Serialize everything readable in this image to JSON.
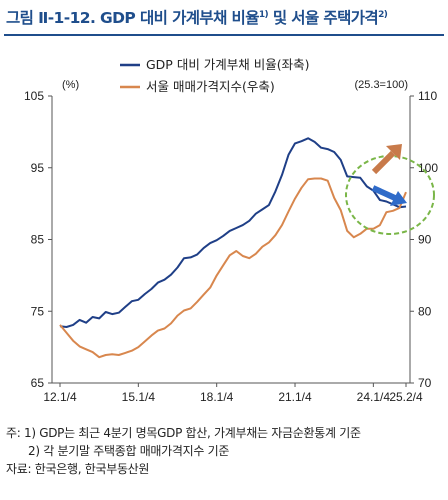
{
  "title": {
    "main": "그림 Ⅱ-1-12. GDP 대비 가계부채 비율",
    "note1": "1)",
    "mid": " 및 서울 주택가격",
    "note2": "2)"
  },
  "notes": [
    "주: 1) GDP는 최근 4분기 명목GDP 합산, 가계부채는 자금순환통계 기준",
    "2) 각 분기말 주택종합 매매가격지수 기준",
    "자료: 한국은행, 한국부동산원"
  ],
  "colors": {
    "title": "#1f4e8c",
    "debt_ratio": "#1f3f87",
    "house_price": "#d8874e",
    "up_arrow": "#c87a4a",
    "down_arrow": "#2f6bc9",
    "ellipse": "#7ab648"
  },
  "chart_data": {
    "type": "line",
    "left_unit": "(%)",
    "right_unit": "(25.3=100)",
    "x_tick_labels": [
      "12.1/4",
      "15.1/4",
      "18.1/4",
      "21.1/4",
      "24.1/4",
      "25.2/4"
    ],
    "x_tick_positions": [
      "2012Q1",
      "2015Q1",
      "2018Q1",
      "2021Q1",
      "2024Q1",
      "2025Q2"
    ],
    "left_axis": {
      "min": 65,
      "max": 105,
      "ticks": [
        65,
        75,
        85,
        95,
        105
      ]
    },
    "right_axis": {
      "min": 70,
      "max": 110,
      "ticks": [
        70,
        80,
        90,
        100,
        110
      ]
    },
    "series": [
      {
        "name": "GDP 대비 가계부채 비율(좌축)",
        "axis": "left",
        "color": "#1f3f87",
        "x": [
          "2012Q1",
          "2012Q2",
          "2012Q3",
          "2012Q4",
          "2013Q1",
          "2013Q2",
          "2013Q3",
          "2013Q4",
          "2014Q1",
          "2014Q2",
          "2014Q3",
          "2014Q4",
          "2015Q1",
          "2015Q2",
          "2015Q3",
          "2015Q4",
          "2016Q1",
          "2016Q2",
          "2016Q3",
          "2016Q4",
          "2017Q1",
          "2017Q2",
          "2017Q3",
          "2017Q4",
          "2018Q1",
          "2018Q2",
          "2018Q3",
          "2018Q4",
          "2019Q1",
          "2019Q2",
          "2019Q3",
          "2019Q4",
          "2020Q1",
          "2020Q2",
          "2020Q3",
          "2020Q4",
          "2021Q1",
          "2021Q2",
          "2021Q3",
          "2021Q4",
          "2022Q1",
          "2022Q2",
          "2022Q3",
          "2022Q4",
          "2023Q1",
          "2023Q2",
          "2023Q3",
          "2023Q4",
          "2024Q1",
          "2024Q2",
          "2024Q3",
          "2024Q4",
          "2025Q1",
          "2025Q2"
        ],
        "values": [
          72.9,
          72.8,
          73.1,
          73.8,
          73.4,
          74.2,
          74.0,
          74.9,
          74.6,
          74.8,
          75.6,
          76.4,
          76.6,
          77.4,
          78.1,
          79.0,
          79.4,
          80.1,
          81.1,
          82.4,
          82.5,
          82.9,
          83.8,
          84.5,
          84.9,
          85.5,
          86.2,
          86.6,
          87.0,
          87.6,
          88.6,
          89.2,
          89.8,
          91.7,
          94.0,
          96.8,
          98.4,
          98.7,
          99.1,
          98.6,
          97.8,
          97.6,
          97.2,
          96.1,
          93.8,
          93.7,
          93.6,
          92.4,
          91.8,
          90.5,
          90.3,
          89.9,
          89.5,
          89.6
        ]
      },
      {
        "name": "서울 매매가격지수(우축)",
        "axis": "right",
        "color": "#d8874e",
        "x": [
          "2012Q1",
          "2012Q2",
          "2012Q3",
          "2012Q4",
          "2013Q1",
          "2013Q2",
          "2013Q3",
          "2013Q4",
          "2014Q1",
          "2014Q2",
          "2014Q3",
          "2014Q4",
          "2015Q1",
          "2015Q2",
          "2015Q3",
          "2015Q4",
          "2016Q1",
          "2016Q2",
          "2016Q3",
          "2016Q4",
          "2017Q1",
          "2017Q2",
          "2017Q3",
          "2017Q4",
          "2018Q1",
          "2018Q2",
          "2018Q3",
          "2018Q4",
          "2019Q1",
          "2019Q2",
          "2019Q3",
          "2019Q4",
          "2020Q1",
          "2020Q2",
          "2020Q3",
          "2020Q4",
          "2021Q1",
          "2021Q2",
          "2021Q3",
          "2021Q4",
          "2022Q1",
          "2022Q2",
          "2022Q3",
          "2022Q4",
          "2023Q1",
          "2023Q2",
          "2023Q3",
          "2023Q4",
          "2024Q1",
          "2024Q2",
          "2024Q3",
          "2024Q4",
          "2025Q1",
          "2025Q2"
        ],
        "values": [
          78.1,
          77.0,
          75.9,
          75.1,
          74.7,
          74.3,
          73.6,
          73.9,
          74.0,
          73.9,
          74.2,
          74.5,
          75.0,
          75.8,
          76.6,
          77.3,
          77.6,
          78.3,
          79.4,
          80.1,
          80.4,
          81.3,
          82.3,
          83.3,
          85.0,
          86.4,
          87.8,
          88.4,
          87.7,
          87.4,
          88.0,
          89.0,
          89.6,
          90.6,
          92.0,
          93.9,
          95.7,
          97.2,
          98.4,
          98.5,
          98.5,
          98.2,
          95.8,
          94.1,
          91.2,
          90.3,
          90.8,
          91.5,
          91.5,
          92.0,
          93.8,
          94.0,
          94.4,
          96.6
        ]
      }
    ],
    "annotations": [
      "ellipse around 2024–2025 with upward arrow (house prices) and downward arrow (debt ratio)"
    ],
    "grid": false,
    "legend_position": "top-left"
  }
}
